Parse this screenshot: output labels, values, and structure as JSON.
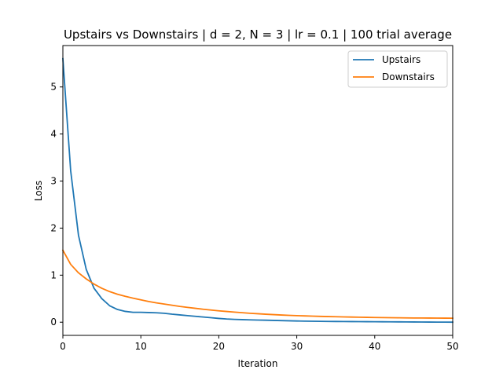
{
  "chart_data": {
    "type": "line",
    "title": "Upstairs vs Downstairs | d = 2, N = 3 | lr = 0.1 | 100 trial average",
    "xlabel": "Iteration",
    "ylabel": "Loss",
    "xlim": [
      0,
      50
    ],
    "ylim": [
      -0.28,
      5.88
    ],
    "xticks": [
      0,
      10,
      20,
      30,
      40,
      50
    ],
    "yticks": [
      0,
      1,
      2,
      3,
      4,
      5
    ],
    "grid": false,
    "legend_position": "top-right",
    "x": [
      0,
      1,
      2,
      3,
      4,
      5,
      6,
      7,
      8,
      9,
      10,
      11,
      12,
      13,
      14,
      15,
      16,
      17,
      18,
      19,
      20,
      21,
      22,
      23,
      24,
      25,
      26,
      27,
      28,
      29,
      30,
      31,
      32,
      33,
      34,
      35,
      36,
      37,
      38,
      39,
      40,
      41,
      42,
      43,
      44,
      45,
      46,
      47,
      48,
      49,
      50
    ],
    "series": [
      {
        "name": "Upstairs",
        "color": "#1f77b4",
        "values": [
          5.6,
          3.22,
          1.85,
          1.12,
          0.72,
          0.5,
          0.35,
          0.27,
          0.23,
          0.21,
          0.21,
          0.205,
          0.2,
          0.19,
          0.17,
          0.155,
          0.14,
          0.125,
          0.11,
          0.095,
          0.08,
          0.068,
          0.06,
          0.055,
          0.05,
          0.046,
          0.042,
          0.038,
          0.034,
          0.03,
          0.026,
          0.022,
          0.02,
          0.018,
          0.016,
          0.015,
          0.014,
          0.013,
          0.012,
          0.011,
          0.01,
          0.009,
          0.008,
          0.007,
          0.006,
          0.005,
          0.004,
          0.003,
          0.002,
          0.002,
          0.001
        ]
      },
      {
        "name": "Downstairs",
        "color": "#ff7f0e",
        "values": [
          1.53,
          1.23,
          1.05,
          0.92,
          0.81,
          0.72,
          0.65,
          0.595,
          0.55,
          0.51,
          0.475,
          0.44,
          0.41,
          0.385,
          0.36,
          0.335,
          0.315,
          0.295,
          0.275,
          0.258,
          0.242,
          0.228,
          0.214,
          0.202,
          0.19,
          0.18,
          0.17,
          0.161,
          0.153,
          0.146,
          0.14,
          0.134,
          0.129,
          0.124,
          0.12,
          0.116,
          0.112,
          0.109,
          0.106,
          0.103,
          0.1,
          0.098,
          0.096,
          0.094,
          0.092,
          0.09,
          0.089,
          0.088,
          0.087,
          0.086,
          0.085
        ]
      }
    ]
  }
}
